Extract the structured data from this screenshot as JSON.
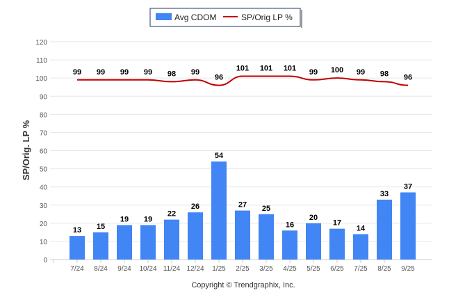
{
  "chart_data": {
    "type": "bar+line",
    "categories": [
      "7/24",
      "8/24",
      "9/24",
      "10/24",
      "11/24",
      "12/24",
      "1/25",
      "2/25",
      "3/25",
      "4/25",
      "5/25",
      "6/25",
      "7/25",
      "8/25",
      "9/25"
    ],
    "series": [
      {
        "name": "Avg CDOM",
        "type": "bar",
        "color": "#4285f4",
        "values": [
          13,
          15,
          19,
          19,
          22,
          26,
          54,
          27,
          25,
          16,
          20,
          17,
          14,
          33,
          37
        ]
      },
      {
        "name": "SP/Orig LP %",
        "type": "line",
        "color": "#c00000",
        "values": [
          99,
          99,
          99,
          99,
          98,
          99,
          96,
          101,
          101,
          101,
          99,
          100,
          99,
          98,
          96
        ]
      }
    ],
    "ylabel": "SP/Orig. LP %",
    "xlabel": "",
    "ylim": [
      0,
      120
    ],
    "yticks": [
      0,
      10,
      20,
      30,
      40,
      50,
      60,
      70,
      80,
      90,
      100,
      110,
      120
    ],
    "grid": true,
    "legend": "top-center"
  },
  "footer": "Copyright © Trendgraphix, Inc."
}
